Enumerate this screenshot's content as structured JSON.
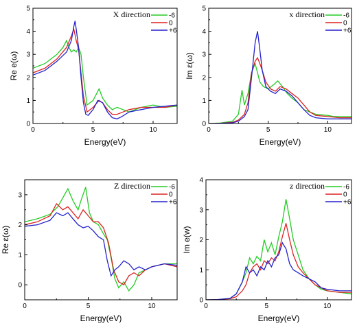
{
  "chart_data": [
    {
      "type": "line",
      "legend_title": "X direction",
      "xlabel": "Energy(eV)",
      "ylabel": "Re e(ω)",
      "xlim": [
        0,
        12
      ],
      "ylim": [
        0,
        5
      ],
      "xticks": [
        0,
        5,
        10
      ],
      "yticks": [
        0,
        1,
        2,
        3,
        4,
        5
      ],
      "legend_placement": "top-right",
      "series": [
        {
          "name": "-6",
          "color": "#22cc22",
          "x": [
            0,
            1,
            2,
            2.5,
            2.8,
            3.0,
            3.2,
            3.4,
            3.6,
            3.8,
            4.0,
            4.2,
            4.5,
            5.0,
            5.3,
            5.5,
            5.8,
            6.2,
            6.6,
            7.0,
            7.5,
            8.0,
            9.0,
            10.0,
            11.0,
            12.0
          ],
          "y": [
            2.4,
            2.6,
            3.0,
            3.3,
            3.6,
            3.3,
            3.1,
            3.2,
            3.1,
            3.3,
            3.0,
            2.0,
            0.8,
            1.0,
            1.3,
            1.5,
            1.1,
            0.8,
            0.6,
            0.7,
            0.6,
            0.5,
            0.7,
            0.8,
            0.7,
            0.75
          ]
        },
        {
          "name": "0",
          "color": "#dd2222",
          "x": [
            0,
            1,
            2,
            2.8,
            3.2,
            3.4,
            3.6,
            3.8,
            4.0,
            4.2,
            4.5,
            5.0,
            5.5,
            5.8,
            6.2,
            6.6,
            7.0,
            7.5,
            8.0,
            9.0,
            10.0,
            11.0,
            12.0
          ],
          "y": [
            2.2,
            2.4,
            2.8,
            3.3,
            3.8,
            4.1,
            3.6,
            3.2,
            2.2,
            1.2,
            0.5,
            0.7,
            1.0,
            0.9,
            0.6,
            0.4,
            0.4,
            0.5,
            0.6,
            0.7,
            0.7,
            0.7,
            0.8
          ]
        },
        {
          "name": "+6",
          "color": "#2222cc",
          "x": [
            0,
            1,
            2,
            2.8,
            3.2,
            3.4,
            3.5,
            3.6,
            3.8,
            4.0,
            4.2,
            4.4,
            4.6,
            5.0,
            5.4,
            5.8,
            6.2,
            6.6,
            7.0,
            7.4,
            8.0,
            9.0,
            10.0,
            11.0,
            12.0
          ],
          "y": [
            2.1,
            2.3,
            2.7,
            3.1,
            3.6,
            4.2,
            4.45,
            4.1,
            3.3,
            2.0,
            0.9,
            0.4,
            0.35,
            0.6,
            1.0,
            0.9,
            0.5,
            0.25,
            0.2,
            0.3,
            0.5,
            0.6,
            0.7,
            0.75,
            0.8
          ]
        }
      ]
    },
    {
      "type": "line",
      "legend_title": "x direction",
      "xlabel": "Energy(eV)",
      "ylabel": "Im ε(ω)",
      "xlim": [
        0,
        12
      ],
      "ylim": [
        0,
        5
      ],
      "xticks": [
        0,
        5,
        10
      ],
      "yticks": [
        0,
        1,
        2,
        3,
        4,
        5
      ],
      "legend_placement": "top-right",
      "series": [
        {
          "name": "-6",
          "color": "#22cc22",
          "x": [
            0,
            1,
            2,
            2.5,
            2.8,
            3.0,
            3.3,
            3.6,
            3.9,
            4.1,
            4.3,
            4.6,
            5.0,
            5.5,
            5.8,
            6.2,
            6.6,
            7.0,
            7.5,
            8.0,
            9.0,
            10.0,
            10.5,
            11.0,
            12.0
          ],
          "y": [
            0,
            0.02,
            0.1,
            0.4,
            1.45,
            0.8,
            1.3,
            2.2,
            2.6,
            2.2,
            1.8,
            1.6,
            1.5,
            1.7,
            1.85,
            1.6,
            1.3,
            1.1,
            0.9,
            0.6,
            0.4,
            0.35,
            0.3,
            0.3,
            0.3
          ]
        },
        {
          "name": "0",
          "color": "#dd2222",
          "x": [
            0,
            1,
            2,
            2.5,
            3.0,
            3.3,
            3.6,
            3.9,
            4.1,
            4.3,
            4.5,
            4.8,
            5.2,
            5.6,
            6.0,
            6.5,
            7.0,
            7.5,
            8.0,
            8.5,
            9.0,
            10.0,
            11.0,
            12.0
          ],
          "y": [
            0,
            0.01,
            0.05,
            0.15,
            0.4,
            0.9,
            2.2,
            2.7,
            2.85,
            2.6,
            2.3,
            1.8,
            1.5,
            1.4,
            1.6,
            1.5,
            1.3,
            1.1,
            0.8,
            0.5,
            0.35,
            0.3,
            0.25,
            0.25
          ]
        },
        {
          "name": "+6",
          "color": "#2222cc",
          "x": [
            0,
            1,
            2,
            2.5,
            3.0,
            3.3,
            3.6,
            3.9,
            4.1,
            4.3,
            4.5,
            4.8,
            5.2,
            5.6,
            6.0,
            6.5,
            7.0,
            7.5,
            8.0,
            8.5,
            9.0,
            10.0,
            11.0,
            12.0
          ],
          "y": [
            0,
            0.01,
            0.03,
            0.1,
            0.3,
            0.6,
            2.0,
            3.5,
            4.0,
            3.2,
            2.3,
            1.6,
            1.4,
            1.3,
            1.5,
            1.4,
            1.2,
            0.9,
            0.6,
            0.35,
            0.25,
            0.2,
            0.2,
            0.2
          ]
        }
      ]
    },
    {
      "type": "line",
      "legend_title": "Z direction",
      "xlabel": "Energy(eV)",
      "ylabel": "Re ε(ω)",
      "xlim": [
        0,
        12
      ],
      "ylim": [
        -0.5,
        3.5
      ],
      "xticks": [
        0,
        5,
        10
      ],
      "yticks": [
        0,
        1,
        2,
        3
      ],
      "legend_placement": "top-right",
      "series": [
        {
          "name": "-6",
          "color": "#22cc22",
          "x": [
            0,
            1,
            2,
            2.6,
            3.0,
            3.4,
            3.8,
            4.2,
            4.5,
            4.8,
            5.1,
            5.4,
            5.8,
            6.2,
            6.5,
            6.8,
            7.1,
            7.4,
            7.8,
            8.2,
            8.6,
            9.0,
            9.5,
            10.0,
            11.0,
            12.0
          ],
          "y": [
            2.1,
            2.2,
            2.35,
            2.6,
            2.9,
            3.2,
            2.8,
            2.5,
            2.9,
            3.25,
            2.4,
            2.1,
            2.0,
            1.7,
            1.5,
            0.9,
            0.2,
            -0.1,
            0.1,
            -0.2,
            0.0,
            0.4,
            0.5,
            0.6,
            0.7,
            0.7
          ]
        },
        {
          "name": "0",
          "color": "#dd2222",
          "x": [
            0,
            1,
            2,
            2.5,
            3.0,
            3.4,
            3.8,
            4.2,
            4.6,
            5.0,
            5.4,
            5.8,
            6.2,
            6.6,
            7.0,
            7.4,
            7.8,
            8.2,
            8.6,
            9.0,
            9.5,
            10.0,
            11.0,
            12.0
          ],
          "y": [
            2.0,
            2.1,
            2.3,
            2.7,
            2.5,
            2.6,
            2.4,
            2.2,
            2.5,
            2.3,
            2.1,
            2.1,
            1.9,
            1.4,
            0.5,
            0.1,
            0.0,
            0.3,
            0.4,
            0.3,
            0.5,
            0.6,
            0.7,
            0.6
          ]
        },
        {
          "name": "+6",
          "color": "#2222cc",
          "x": [
            0,
            1,
            2,
            2.5,
            3.0,
            3.4,
            3.8,
            4.2,
            4.6,
            5.0,
            5.4,
            5.8,
            6.2,
            6.5,
            6.8,
            7.1,
            7.4,
            7.8,
            8.2,
            8.6,
            9.0,
            9.5,
            10.0,
            11.0,
            12.0
          ],
          "y": [
            1.95,
            2.0,
            2.15,
            2.4,
            2.3,
            2.4,
            2.2,
            2.0,
            1.9,
            1.95,
            1.8,
            1.6,
            1.5,
            0.8,
            0.3,
            0.5,
            0.6,
            0.8,
            0.7,
            0.5,
            0.6,
            0.5,
            0.6,
            0.7,
            0.65
          ]
        }
      ]
    },
    {
      "type": "line",
      "legend_title": "z direction",
      "xlabel": "Energy(eV)",
      "ylabel": "Im e(w)",
      "xlim": [
        0,
        12
      ],
      "ylim": [
        0,
        4
      ],
      "xticks": [
        0,
        5,
        10
      ],
      "yticks": [
        0,
        1,
        2,
        3,
        4
      ],
      "legend_placement": "top-right",
      "series": [
        {
          "name": "-6",
          "color": "#22cc22",
          "x": [
            0,
            1,
            2,
            2.5,
            3.0,
            3.3,
            3.6,
            3.9,
            4.2,
            4.5,
            4.8,
            5.1,
            5.4,
            5.7,
            6.0,
            6.3,
            6.6,
            6.9,
            7.2,
            7.6,
            8.0,
            8.5,
            9.0,
            9.5,
            10.0,
            11.0,
            12.0
          ],
          "y": [
            0,
            0.01,
            0.05,
            0.2,
            0.6,
            0.9,
            1.4,
            1.2,
            1.45,
            1.3,
            2.0,
            1.6,
            1.9,
            1.5,
            2.1,
            2.6,
            3.35,
            2.7,
            2.0,
            1.5,
            1.0,
            0.7,
            0.5,
            0.35,
            0.3,
            0.25,
            0.2
          ]
        },
        {
          "name": "0",
          "color": "#dd2222",
          "x": [
            0,
            1,
            2,
            2.5,
            3.0,
            3.3,
            3.6,
            3.9,
            4.2,
            4.5,
            4.8,
            5.1,
            5.4,
            5.7,
            6.0,
            6.3,
            6.6,
            6.9,
            7.2,
            7.6,
            8.0,
            8.5,
            9.0,
            9.5,
            10.0,
            11.0,
            12.0
          ],
          "y": [
            0,
            0.01,
            0.04,
            0.1,
            0.3,
            0.5,
            0.9,
            1.1,
            1.2,
            1.0,
            1.3,
            1.2,
            1.4,
            1.3,
            1.6,
            2.1,
            2.55,
            2.0,
            1.5,
            1.1,
            0.9,
            0.7,
            0.5,
            0.4,
            0.3,
            0.25,
            0.25
          ]
        },
        {
          "name": "+6",
          "color": "#2222cc",
          "x": [
            0,
            1,
            2,
            2.5,
            3.0,
            3.3,
            3.6,
            3.9,
            4.2,
            4.5,
            4.8,
            5.1,
            5.4,
            5.7,
            6.0,
            6.3,
            6.6,
            6.9,
            7.2,
            7.6,
            8.0,
            8.5,
            9.0,
            9.5,
            10.0,
            11.0,
            12.0
          ],
          "y": [
            0,
            0.01,
            0.05,
            0.2,
            0.6,
            1.1,
            0.9,
            1.0,
            0.8,
            1.1,
            1.0,
            1.3,
            1.1,
            1.4,
            1.5,
            1.9,
            1.7,
            1.2,
            1.0,
            0.9,
            0.8,
            0.7,
            0.6,
            0.4,
            0.35,
            0.3,
            0.3
          ]
        }
      ]
    }
  ]
}
